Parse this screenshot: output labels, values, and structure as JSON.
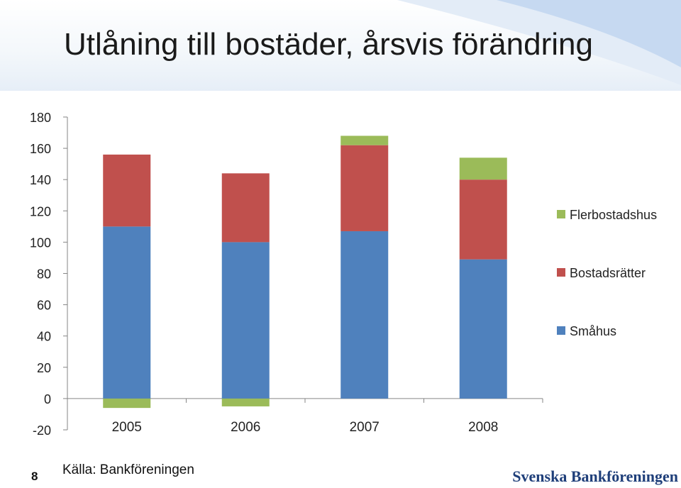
{
  "slide": {
    "title": "Utlåning till bostäder, årsvis förändring",
    "page_number": "8",
    "source": "Källa: Bankföreningen",
    "brand": "Svenska Bankföreningen"
  },
  "colors": {
    "Småhus": "#4f81bd",
    "Bostadsrätter": "#c0504d",
    "Flerbostadshus": "#9bbb59",
    "header_accent": "#c6d9f1"
  },
  "chart_data": {
    "type": "bar",
    "stacked": true,
    "categories": [
      "2005",
      "2006",
      "2007",
      "2008"
    ],
    "series": [
      {
        "name": "Småhus",
        "values": [
          110,
          100,
          107,
          89
        ]
      },
      {
        "name": "Bostadsrätter",
        "values": [
          46,
          44,
          55,
          51
        ]
      },
      {
        "name": "Flerbostadshus",
        "values": [
          -6,
          -5,
          6,
          14
        ]
      }
    ],
    "ylim": [
      -20,
      180
    ],
    "yticks": [
      "-20",
      "0",
      "20",
      "40",
      "60",
      "80",
      "100",
      "120",
      "140",
      "160",
      "180"
    ],
    "legend_position": "right",
    "legend_order": [
      "Flerbostadshus",
      "Bostadsrätter",
      "Småhus"
    ],
    "grid": false
  }
}
